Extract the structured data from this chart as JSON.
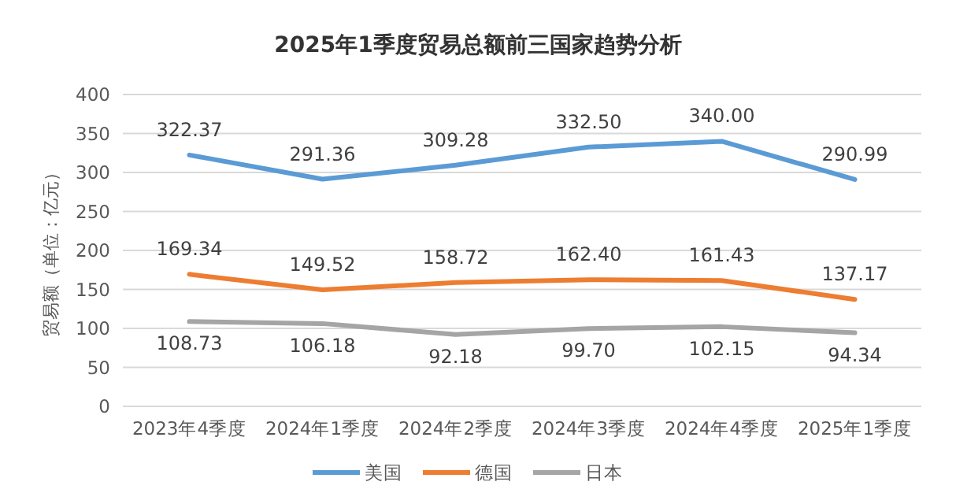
{
  "chart_data": {
    "type": "line",
    "title": "2025年1季度贸易总额前三国家趋势分析",
    "ylabel": "贸易额（单位：亿元）",
    "categories": [
      "2023年4季度",
      "2024年1季度",
      "2024年2季度",
      "2024年3季度",
      "2024年4季度",
      "2025年1季度"
    ],
    "series": [
      {
        "name": "美国",
        "color": "#5b9bd5",
        "values": [
          322.37,
          291.36,
          309.28,
          332.5,
          340.0,
          290.99
        ],
        "value_labels": [
          "322.37",
          "291.36",
          "309.28",
          "332.50",
          "340.00",
          "290.99"
        ]
      },
      {
        "name": "德国",
        "color": "#ed7d31",
        "values": [
          169.34,
          149.52,
          158.72,
          162.4,
          161.43,
          137.17
        ],
        "value_labels": [
          "169.34",
          "149.52",
          "158.72",
          "162.40",
          "161.43",
          "137.17"
        ]
      },
      {
        "name": "日本",
        "color": "#a5a5a5",
        "values": [
          108.73,
          106.18,
          92.18,
          99.7,
          102.15,
          94.34
        ],
        "value_labels": [
          "108.73",
          "106.18",
          "92.18",
          "99.70",
          "102.15",
          "94.34"
        ]
      }
    ],
    "ylim": [
      0,
      400
    ],
    "yticks": [
      0,
      50,
      100,
      150,
      200,
      250,
      300,
      350,
      400
    ],
    "grid": "y",
    "legend": "bottom",
    "marker": "none",
    "line_style": "solid"
  }
}
